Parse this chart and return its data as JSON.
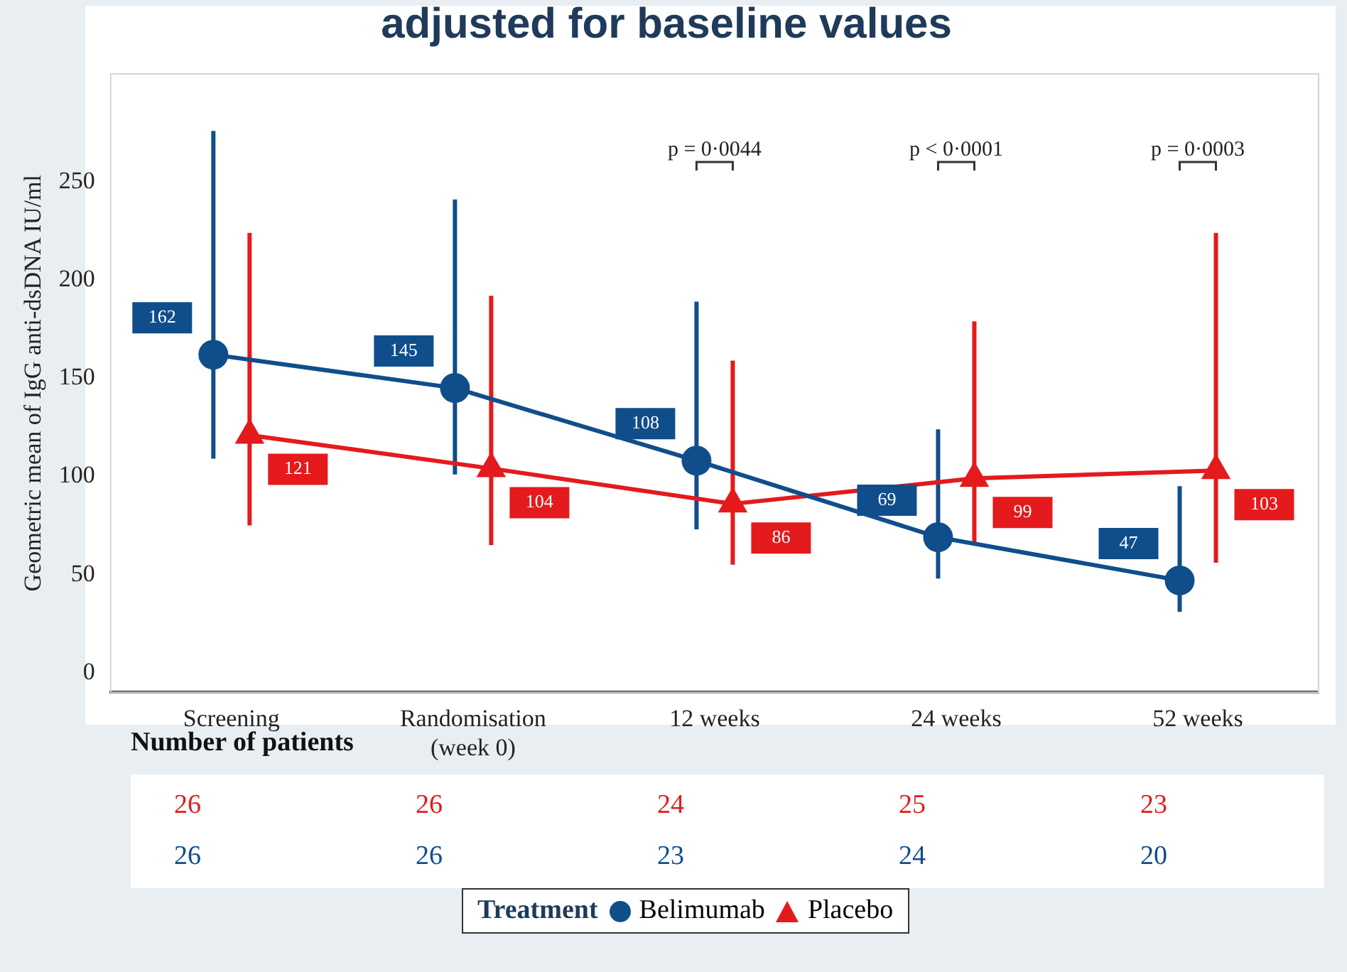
{
  "chart_data": {
    "type": "line",
    "title": "adjusted for baseline values",
    "ylabel": "Geometric mean of IgG anti-dsDNA IU/ml",
    "legend_title": "Treatment",
    "categories": [
      "Screening",
      "Randomisation\n(week 0)",
      "12 weeks",
      "24 weeks",
      "52 weeks"
    ],
    "series": [
      {
        "name": "Belimumab",
        "color": "#104e8b",
        "marker": "circle",
        "values": [
          162,
          145,
          108,
          69,
          47
        ],
        "errors": [
          [
            109,
            276
          ],
          [
            101,
            241
          ],
          [
            73,
            189
          ],
          [
            48,
            124
          ],
          [
            31,
            95
          ]
        ]
      },
      {
        "name": "Placebo",
        "color": "#e41a1c",
        "marker": "triangle",
        "values": [
          121,
          104,
          86,
          99,
          103
        ],
        "errors": [
          [
            75,
            224
          ],
          [
            65,
            192
          ],
          [
            55,
            159
          ],
          [
            65,
            179
          ],
          [
            56,
            224
          ]
        ]
      }
    ],
    "ylim": [
      -10,
      305
    ],
    "yticks": [
      0,
      50,
      100,
      150,
      200,
      250
    ],
    "grid": false,
    "legend": "bottom",
    "data_labels": true,
    "annotations": [
      "p = 0·0044",
      "p < 0·0001",
      "p = 0·0003",
      "Number of patients",
      "26",
      "26",
      "24",
      "25",
      "23",
      "26",
      "26",
      "23",
      "24",
      "20"
    ]
  }
}
